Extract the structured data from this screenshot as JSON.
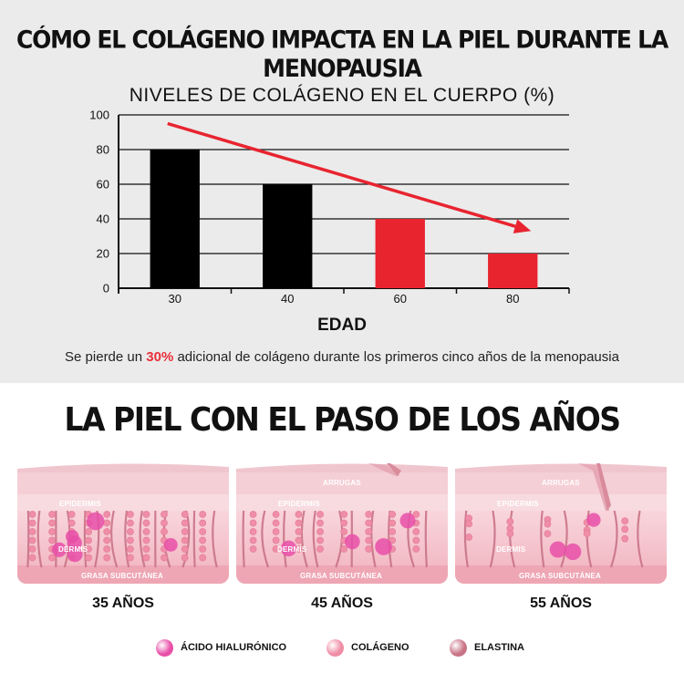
{
  "main_title": "CÓMO EL COLÁGENO IMPACTA EN LA PIEL DURANTE LA MENOPAUSIA",
  "chart_data": {
    "type": "bar",
    "title": "NIVELES DE COLÁGENO EN EL CUERPO (%)",
    "xlabel": "EDAD",
    "ylabel": "",
    "categories": [
      "30",
      "40",
      "60",
      "80"
    ],
    "values": [
      80,
      60,
      40,
      20
    ],
    "bar_colors": [
      "#000000",
      "#000000",
      "#e8242f",
      "#e8242f"
    ],
    "ylim": [
      0,
      100
    ],
    "yticks": [
      0,
      20,
      40,
      60,
      80,
      100
    ],
    "grid": true,
    "trend_arrow": {
      "from_value": 95,
      "to_value": 33,
      "color": "#e8242f"
    }
  },
  "note": {
    "before": "Se pierde un ",
    "highlight": "30%",
    "after": " adicional de colágeno durante los primeros cinco años de la menopausia",
    "highlight_color": "#e8303a"
  },
  "section_title": "LA PIEL CON EL PASO DE LOS AÑOS",
  "panels": [
    {
      "age": "35 AÑOS",
      "wrinkles": "",
      "epidermis": "EPIDERMIS",
      "dermis": "DERMIS",
      "fat": "GRASA SUBCUTÁNEA"
    },
    {
      "age": "45 AÑOS",
      "wrinkles": "ARRUGAS",
      "epidermis": "EPIDERMIS",
      "dermis": "DERMIS",
      "fat": "GRASA SUBCUTÁNEA"
    },
    {
      "age": "55 AÑOS",
      "wrinkles": "ARRUGAS",
      "epidermis": "EPIDERMIS",
      "dermis": "DERMIS",
      "fat": "GRASA SUBCUTÁNEA"
    }
  ],
  "legend": [
    {
      "label": "ÁCIDO HIALURÓNICO",
      "color": "#e84fa8",
      "icon": "hyaluronic-dot"
    },
    {
      "label": "COLÁGENO",
      "color": "#ef8ea6",
      "icon": "collagen-dot"
    },
    {
      "label": "ELASTINA",
      "color": "#c97386",
      "icon": "elastin-dot"
    }
  ]
}
